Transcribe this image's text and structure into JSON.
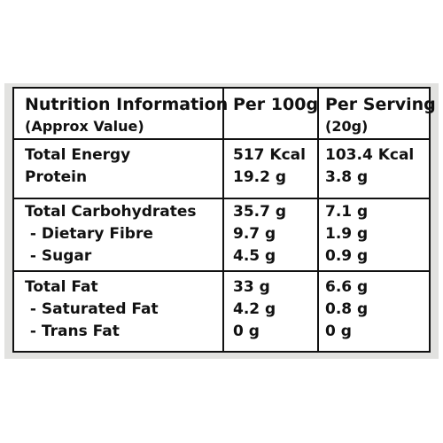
{
  "table": {
    "header": {
      "title": "Nutrition Information",
      "subtitle": "(Approx Value)",
      "per100g": "Per 100g",
      "perServing": "Per Serving",
      "perServingSub": "(20g)"
    },
    "groups": [
      {
        "rows": [
          {
            "label": "Total Energy",
            "per100g": "517 Kcal",
            "perServing": "103.4 Kcal"
          },
          {
            "label": "Protein",
            "per100g": "19.2 g",
            "perServing": "3.8 g"
          }
        ]
      },
      {
        "rows": [
          {
            "label": "Total Carbohydrates",
            "per100g": "35.7 g",
            "perServing": "7.1 g"
          },
          {
            "label": " - Dietary Fibre",
            "per100g": "9.7 g",
            "perServing": "1.9 g"
          },
          {
            "label": " - Sugar",
            "per100g": "4.5 g",
            "perServing": "0.9 g"
          }
        ]
      },
      {
        "rows": [
          {
            "label": "Total Fat",
            "per100g": "33 g",
            "perServing": "6.6 g"
          },
          {
            "label": " - Saturated Fat",
            "per100g": "4.2 g",
            "perServing": "0.8 g"
          },
          {
            "label": " - Trans Fat",
            "per100g": "0 g",
            "perServing": "0 g"
          }
        ]
      }
    ]
  }
}
